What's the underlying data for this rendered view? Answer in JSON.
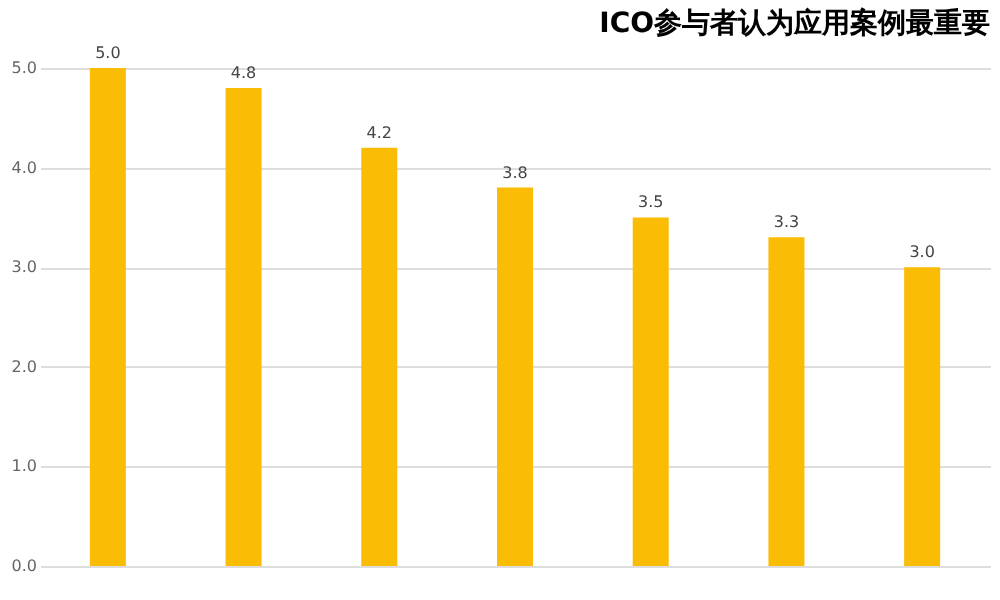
{
  "chart_data": {
    "type": "bar",
    "title": "ICO参与者认为应用案例最重要",
    "categories": [
      null,
      null,
      null,
      null,
      null,
      null,
      null
    ],
    "values": [
      5.0,
      4.8,
      4.2,
      3.8,
      3.5,
      3.3,
      3.0
    ],
    "color": "#fbbc05",
    "value_labels": [
      "5.0",
      "4.8",
      "4.2",
      "3.8",
      "3.5",
      "3.3",
      "3.0"
    ],
    "ylim": [
      0,
      5
    ],
    "yticks": [
      {
        "value": 0,
        "label": "0.0"
      },
      {
        "value": 1,
        "label": "1.0"
      },
      {
        "value": 2,
        "label": "2.0"
      },
      {
        "value": 3,
        "label": "3.0"
      },
      {
        "value": 4,
        "label": "4.0"
      },
      {
        "value": 5,
        "label": "5.0"
      }
    ],
    "grid": "y"
  }
}
